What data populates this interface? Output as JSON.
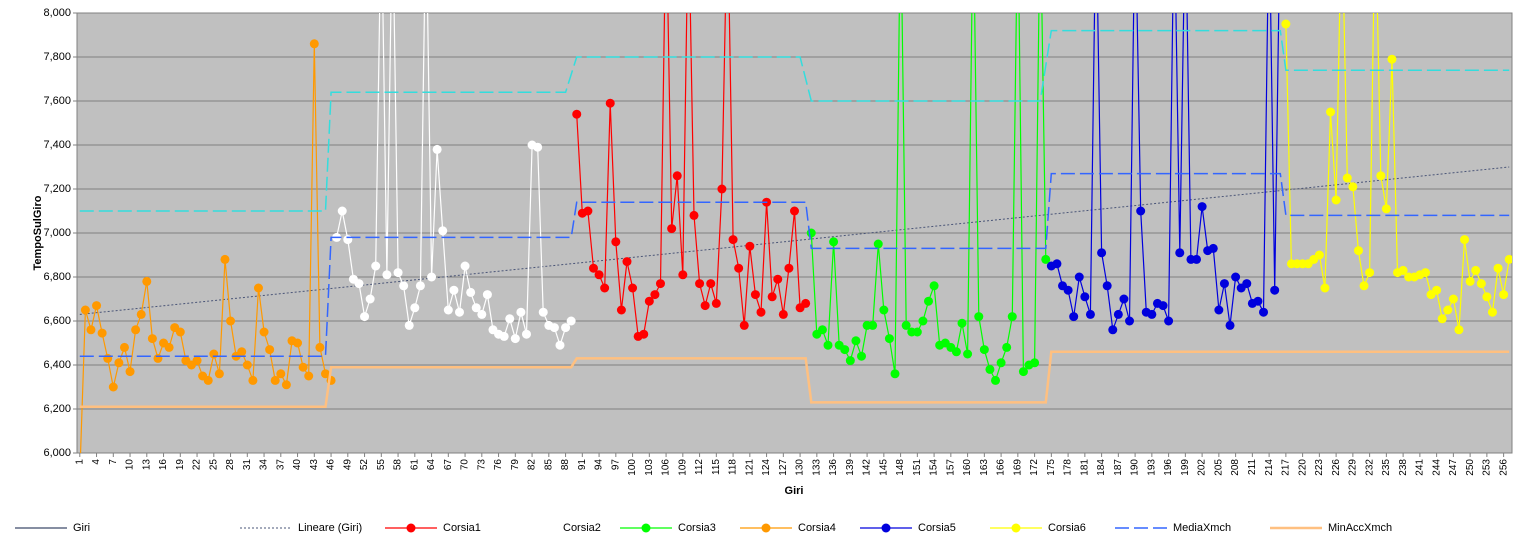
{
  "chart_data": {
    "type": "line",
    "y_label": "TempoSulGiro",
    "x_label": "Giri",
    "xlim": [
      0.5,
      257.5
    ],
    "ylim": [
      6000,
      8000
    ],
    "xticks": [
      1,
      4,
      7,
      10,
      13,
      16,
      19,
      22,
      25,
      28,
      31,
      34,
      37,
      40,
      43,
      46,
      49,
      52,
      55,
      58,
      61,
      64,
      67,
      70,
      73,
      76,
      79,
      82,
      85,
      88,
      91,
      94,
      97,
      100,
      103,
      106,
      109,
      112,
      115,
      118,
      121,
      124,
      127,
      130,
      133,
      136,
      139,
      142,
      145,
      148,
      151,
      154,
      157,
      160,
      163,
      166,
      169,
      172,
      175,
      178,
      181,
      184,
      187,
      190,
      193,
      196,
      199,
      202,
      205,
      208,
      211,
      214,
      217,
      220,
      223,
      226,
      229,
      232,
      235,
      238,
      241,
      244,
      247,
      250,
      253,
      256
    ],
    "yticks": [
      {
        "value": 6000,
        "label": "6,000"
      },
      {
        "value": 6200,
        "label": "6,200"
      },
      {
        "value": 6400,
        "label": "6,400"
      },
      {
        "value": 6600,
        "label": "6,600"
      },
      {
        "value": 6800,
        "label": "6,800"
      },
      {
        "value": 7000,
        "label": "7,000"
      },
      {
        "value": 7200,
        "label": "7,200"
      },
      {
        "value": 7400,
        "label": "7,400"
      },
      {
        "value": 7600,
        "label": "7,600"
      },
      {
        "value": 7800,
        "label": "7,800"
      },
      {
        "value": 8000,
        "label": "8,000"
      }
    ],
    "grid": true,
    "legend": "bottom",
    "series": [
      {
        "name": "Giri",
        "color": "#3d4a6b",
        "style": "solid",
        "marker": false
      },
      {
        "name": "Lineare (Giri)",
        "color": "#4a5577",
        "style": "dotted",
        "marker": false,
        "x": [
          1,
          257
        ],
        "values": [
          6630,
          7300
        ]
      },
      {
        "name": "Corsia1",
        "color": "#ff0000",
        "style": "solid",
        "marker": true,
        "x": [
          90,
          91,
          92,
          93,
          94,
          95,
          96,
          97,
          98,
          99,
          100,
          101,
          102,
          103,
          104,
          105,
          106,
          107,
          108,
          109,
          110,
          111,
          112,
          113,
          114,
          115,
          116,
          117,
          118,
          119,
          120,
          121,
          122,
          123,
          124,
          125,
          126,
          127,
          128,
          129,
          130,
          131
        ],
        "values": [
          7540,
          7090,
          7100,
          6840,
          6810,
          6750,
          7590,
          6960,
          6650,
          6870,
          6750,
          6530,
          6540,
          6690,
          6720,
          6770,
          8500,
          7020,
          7260,
          6810,
          8500,
          7080,
          6770,
          6670,
          6770,
          6680,
          7200,
          8500,
          6970,
          6840,
          6580,
          6940,
          6720,
          6640,
          7140,
          6710,
          6790,
          6630,
          6840,
          7100,
          6660,
          6680
        ]
      },
      {
        "name": "Corsia2",
        "color": "#ffffff",
        "style": "solid",
        "marker": true,
        "x": [
          47,
          48,
          49,
          50,
          51,
          52,
          53,
          54,
          55,
          56,
          57,
          58,
          59,
          60,
          61,
          62,
          63,
          64,
          65,
          66,
          67,
          68,
          69,
          70,
          71,
          72,
          73,
          74,
          75,
          76,
          77,
          78,
          79,
          80,
          81,
          82,
          83,
          84,
          85,
          86,
          87,
          88,
          89
        ],
        "values": [
          6980,
          7100,
          6970,
          6790,
          6770,
          6620,
          6700,
          6850,
          8500,
          6810,
          8500,
          6820,
          6760,
          6580,
          6660,
          6760,
          8500,
          6800,
          7380,
          7010,
          6650,
          6740,
          6640,
          6850,
          6730,
          6660,
          6630,
          6720,
          6560,
          6540,
          6530,
          6610,
          6520,
          6640,
          6540,
          7400,
          7390,
          6640,
          6580,
          6570,
          6490,
          6570,
          6600
        ]
      },
      {
        "name": "Corsia3",
        "color": "#00ff00",
        "style": "solid",
        "marker": true,
        "x": [
          132,
          133,
          134,
          135,
          136,
          137,
          138,
          139,
          140,
          141,
          142,
          143,
          144,
          145,
          146,
          147,
          148,
          149,
          150,
          151,
          152,
          153,
          154,
          155,
          156,
          157,
          158,
          159,
          160,
          161,
          162,
          163,
          164,
          165,
          166,
          167,
          168,
          169,
          170,
          171,
          172,
          173,
          174
        ],
        "values": [
          7000,
          6540,
          6560,
          6490,
          6960,
          6490,
          6470,
          6420,
          6510,
          6440,
          6580,
          6580,
          6950,
          6650,
          6520,
          6360,
          8500,
          6580,
          6550,
          6550,
          6600,
          6690,
          6760,
          6490,
          6500,
          6480,
          6460,
          6590,
          6450,
          8500,
          6620,
          6470,
          6380,
          6330,
          6410,
          6480,
          6620,
          8500,
          6370,
          6400,
          6410,
          8500,
          6880
        ]
      },
      {
        "name": "Corsia4",
        "color": "#ff9900",
        "style": "solid",
        "marker": true,
        "x": [
          1,
          2,
          3,
          4,
          5,
          6,
          7,
          8,
          9,
          10,
          11,
          12,
          13,
          14,
          15,
          16,
          17,
          18,
          19,
          20,
          21,
          22,
          23,
          24,
          25,
          26,
          27,
          28,
          29,
          30,
          31,
          32,
          33,
          34,
          35,
          36,
          37,
          38,
          39,
          40,
          41,
          42,
          43,
          44,
          45,
          46
        ],
        "values": [
          5900,
          6650,
          6560,
          6670,
          6545,
          6430,
          6300,
          6410,
          6480,
          6370,
          6560,
          6630,
          6780,
          6520,
          6430,
          6500,
          6480,
          6570,
          6550,
          6420,
          6400,
          6420,
          6350,
          6330,
          6450,
          6360,
          6880,
          6600,
          6440,
          6460,
          6400,
          6330,
          6750,
          6550,
          6470,
          6330,
          6360,
          6310,
          6510,
          6500,
          6390,
          6350,
          7860,
          6480,
          6360,
          6330
        ]
      },
      {
        "name": "Corsia5",
        "color": "#0000dd",
        "style": "solid",
        "marker": true,
        "x": [
          175,
          176,
          177,
          178,
          179,
          180,
          181,
          182,
          183,
          184,
          185,
          186,
          187,
          188,
          189,
          190,
          191,
          192,
          193,
          194,
          195,
          196,
          197,
          198,
          199,
          200,
          201,
          202,
          203,
          204,
          205,
          206,
          207,
          208,
          209,
          210,
          211,
          212,
          213,
          214,
          215,
          216
        ],
        "values": [
          6850,
          6860,
          6760,
          6740,
          6620,
          6800,
          6710,
          6630,
          8500,
          6910,
          6760,
          6560,
          6630,
          6700,
          6600,
          8500,
          7100,
          6640,
          6630,
          6680,
          6670,
          6600,
          8500,
          6910,
          8500,
          6880,
          6880,
          7120,
          6920,
          6930,
          6650,
          6770,
          6580,
          6800,
          6750,
          6770,
          6680,
          6690,
          6640,
          8500,
          6740,
          8500
        ]
      },
      {
        "name": "Corsia6",
        "color": "#ffff00",
        "style": "solid",
        "marker": true,
        "x": [
          217,
          218,
          219,
          220,
          221,
          222,
          223,
          224,
          225,
          226,
          227,
          228,
          229,
          230,
          231,
          232,
          233,
          234,
          235,
          236,
          237,
          238,
          239,
          240,
          241,
          242,
          243,
          244,
          245,
          246,
          247,
          248,
          249,
          250,
          251,
          252,
          253,
          254,
          255,
          256,
          257
        ],
        "values": [
          7950,
          6860,
          6860,
          6860,
          6860,
          6880,
          6900,
          6750,
          7550,
          7150,
          8500,
          7250,
          7210,
          6920,
          6760,
          6820,
          8500,
          7260,
          7110,
          7790,
          6820,
          6830,
          6800,
          6800,
          6810,
          6820,
          6720,
          6740,
          6610,
          6650,
          6700,
          6560,
          6970,
          6780,
          6830,
          6770,
          6710,
          6640,
          6840,
          6720,
          6880
        ]
      },
      {
        "name": "MediaXmch",
        "color": "#3366ff",
        "style": "dashed",
        "marker": false,
        "x": [
          1,
          45,
          46,
          89,
          90,
          131,
          132,
          174,
          175,
          216,
          217,
          257
        ],
        "values": [
          6440,
          6440,
          6980,
          6980,
          7140,
          7140,
          6930,
          6930,
          7270,
          7270,
          7080,
          7080
        ]
      },
      {
        "name": "MinAccXmch",
        "color": "#ffc080",
        "style": "thick",
        "marker": false,
        "x": [
          1,
          45,
          46,
          89,
          90,
          131,
          132,
          174,
          175,
          257
        ],
        "values": [
          6210,
          6210,
          6390,
          6390,
          6430,
          6430,
          6230,
          6230,
          6460,
          6460
        ]
      },
      {
        "name": null,
        "color": "#33dddd",
        "style": "dashed",
        "marker": false,
        "x": [
          1,
          45,
          46,
          88,
          90,
          130,
          132,
          173,
          175,
          216,
          217,
          257
        ],
        "values": [
          7100,
          7100,
          7640,
          7640,
          7800,
          7800,
          7600,
          7600,
          7920,
          7920,
          7740,
          7740
        ]
      }
    ]
  }
}
